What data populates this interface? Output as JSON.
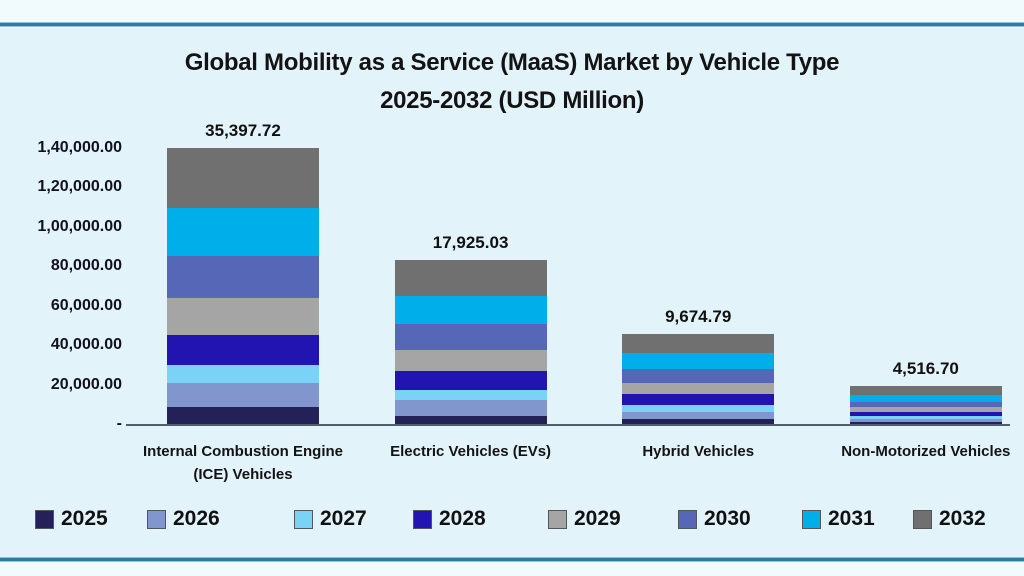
{
  "page": {
    "title_line1": "Global Mobility as a Service (MaaS) Market by Vehicle Type",
    "title_line2": "2025-2032 (USD Million)"
  },
  "colors": {
    "outer_background": "#f1fbfe",
    "inner_background": "#e3f3fa",
    "rule": "#2b7da1",
    "axis_line": "#50606d",
    "text": "#131313"
  },
  "chart_data": {
    "type": "bar",
    "stacked": true,
    "title": "Global Mobility as a Service (MaaS) Market by Vehicle Type 2025-2032 (USD Million)",
    "xlabel": "",
    "ylabel": "",
    "ylim": [
      0,
      140000
    ],
    "grid": false,
    "legend_position": "bottom",
    "y_tick_labels": [
      "1,40,000.00",
      "1,20,000.00",
      "1,00,000.00",
      "80,000.00",
      "60,000.00",
      "40,000.00",
      "20,000.00",
      "-"
    ],
    "y_tick_values": [
      140000,
      120000,
      100000,
      80000,
      60000,
      40000,
      20000,
      0
    ],
    "categories": [
      "Internal Combustion Engine (ICE) Vehicles",
      "Electric Vehicles (EVs)",
      "Hybrid Vehicles",
      "Non-Motorized Vehicles"
    ],
    "category_label_lines": [
      [
        "Internal Combustion Engine",
        "(ICE) Vehicles"
      ],
      [
        "Electric Vehicles (EVs)"
      ],
      [
        "Hybrid Vehicles"
      ],
      [
        "Non-Motorized Vehicles"
      ]
    ],
    "top_labels": [
      "35,397.72",
      "17,925.03",
      "9,674.79",
      "4,516.70"
    ],
    "series": [
      {
        "name": "2025",
        "color": "#242158",
        "values": [
          8400,
          4050,
          2550,
          900
        ]
      },
      {
        "name": "2026",
        "color": "#8096cd",
        "values": [
          12350,
          8100,
          3700,
          1800
        ]
      },
      {
        "name": "2027",
        "color": "#7bd2f7",
        "values": [
          9300,
          5050,
          3350,
          1150
        ]
      },
      {
        "name": "2028",
        "color": "#2114b0",
        "values": [
          15200,
          9800,
          5550,
          2200
        ]
      },
      {
        "name": "2029",
        "color": "#a5a5a5",
        "values": [
          18900,
          10500,
          5450,
          2350
        ]
      },
      {
        "name": "2030",
        "color": "#5667b8",
        "values": [
          21100,
          13150,
          7250,
          2950
        ]
      },
      {
        "name": "2031",
        "color": "#00aeea",
        "values": [
          24150,
          14200,
          7950,
          3200
        ]
      },
      {
        "name": "2032",
        "color": "#707070",
        "values": [
          30700,
          18230,
          10100,
          4550
        ]
      }
    ]
  }
}
